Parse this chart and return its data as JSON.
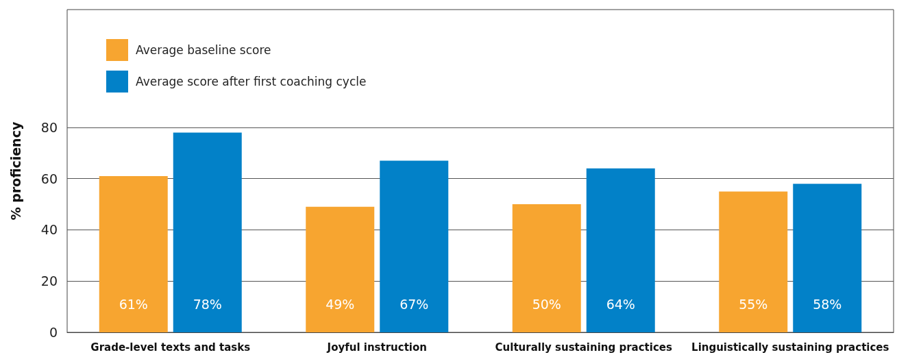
{
  "chart_data": {
    "type": "bar",
    "ylabel": "% proficiency",
    "categories": [
      "Grade-level texts and tasks",
      "Joyful instruction",
      "Culturally sustaining practices",
      "Linguistically sustaining practices"
    ],
    "series": [
      {
        "name": "Average baseline score",
        "color": "#f7a530",
        "values": [
          61,
          49,
          50,
          55
        ],
        "value_labels": [
          "61%",
          "49%",
          "50%",
          "55%"
        ]
      },
      {
        "name": "Average score after first coaching cycle",
        "color": "#0281c8",
        "values": [
          78,
          67,
          64,
          58
        ],
        "value_labels": [
          "78%",
          "67%",
          "64%",
          "58%"
        ]
      }
    ],
    "ylim": [
      0,
      126
    ],
    "yticks": [
      0,
      20,
      40,
      60,
      80
    ],
    "grid": "y",
    "legend": "top left"
  }
}
